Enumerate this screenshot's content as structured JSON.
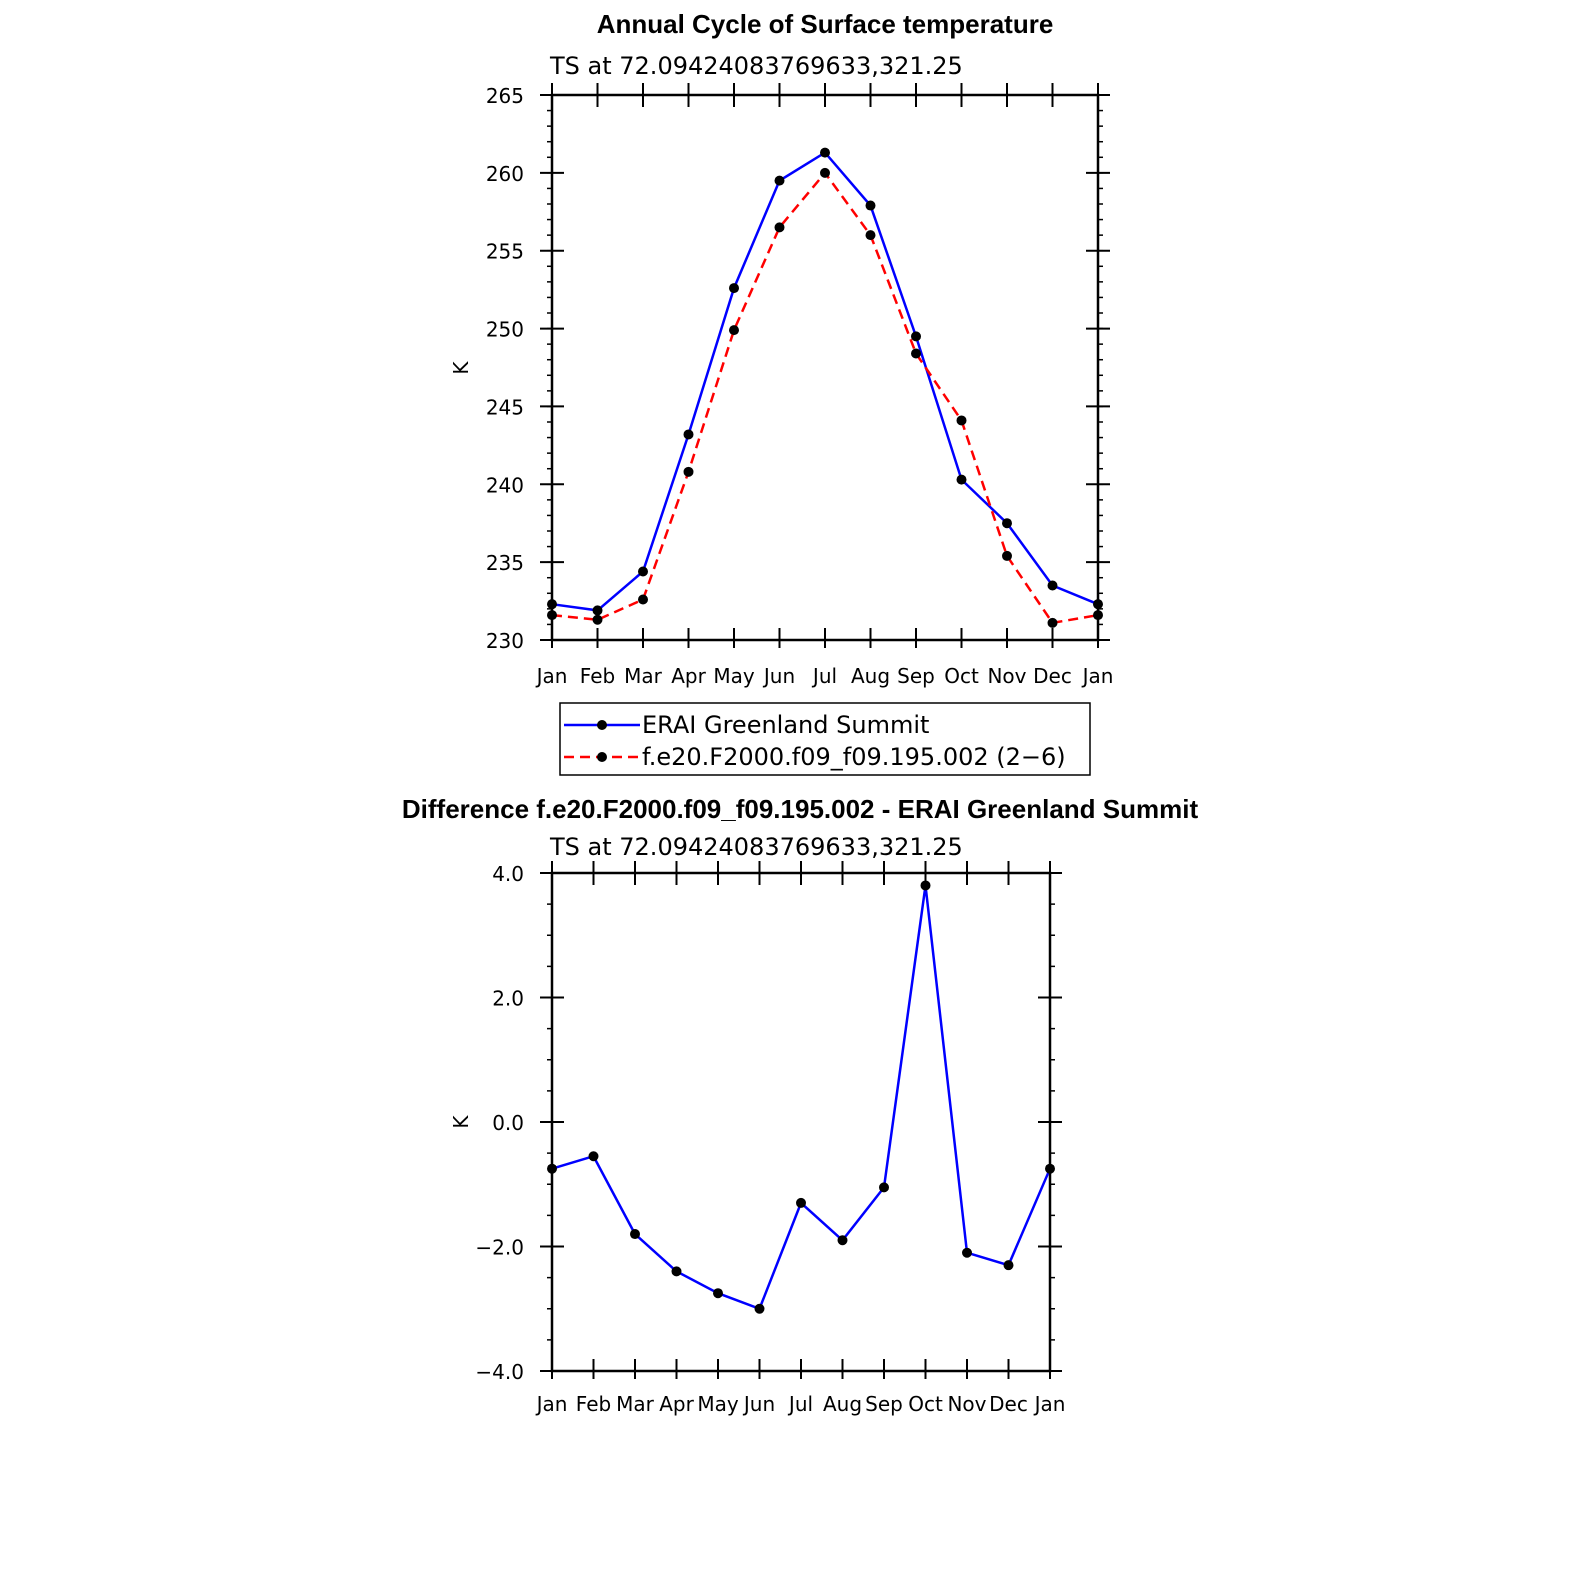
{
  "chart_data": [
    {
      "type": "line",
      "title": "Annual Cycle of Surface temperature",
      "subtitle": "TS at 72.09424083769633,321.25",
      "xlabel": "",
      "ylabel": "K",
      "categories": [
        "Jan",
        "Feb",
        "Mar",
        "Apr",
        "May",
        "Jun",
        "Jul",
        "Aug",
        "Sep",
        "Oct",
        "Nov",
        "Dec",
        "Jan"
      ],
      "ylim": [
        230,
        265
      ],
      "y_ticks": [
        "230",
        "235",
        "240",
        "245",
        "250",
        "255",
        "260",
        "265"
      ],
      "y_tick_values": [
        230,
        235,
        240,
        245,
        250,
        255,
        260,
        265
      ],
      "grid": false,
      "legend_position": "bottom",
      "series": [
        {
          "name": "ERAI Greenland Summit",
          "color": "#0000ff",
          "style": "solid",
          "values": [
            232.3,
            231.9,
            234.4,
            243.2,
            252.6,
            259.5,
            261.3,
            257.9,
            249.5,
            240.3,
            237.5,
            233.5,
            232.3
          ]
        },
        {
          "name": "f.e20.F2000.f09_f09.195.002 (2−6)",
          "color": "#ff0000",
          "style": "dashed",
          "values": [
            231.6,
            231.3,
            232.6,
            240.8,
            249.9,
            256.5,
            260.0,
            256.0,
            248.4,
            244.1,
            235.4,
            231.1,
            231.6
          ]
        }
      ]
    },
    {
      "type": "line",
      "title": "Difference f.e20.F2000.f09_f09.195.002 - ERAI Greenland Summit",
      "subtitle": "TS at 72.09424083769633,321.25",
      "xlabel": "",
      "ylabel": "K",
      "categories": [
        "Jan",
        "Feb",
        "Mar",
        "Apr",
        "May",
        "Jun",
        "Jul",
        "Aug",
        "Sep",
        "Oct",
        "Nov",
        "Dec",
        "Jan"
      ],
      "ylim": [
        -4,
        4
      ],
      "y_ticks": [
        "−4.0",
        "−2.0",
        "0.0",
        "2.0",
        "4.0"
      ],
      "y_tick_values": [
        -4,
        -2,
        0,
        2,
        4
      ],
      "grid": false,
      "series": [
        {
          "color": "#0000ff",
          "style": "solid",
          "values": [
            -0.75,
            -0.55,
            -1.8,
            -2.4,
            -2.75,
            -3.0,
            -1.3,
            -1.9,
            -1.05,
            3.8,
            -2.1,
            -2.3,
            -0.75
          ]
        }
      ]
    }
  ]
}
